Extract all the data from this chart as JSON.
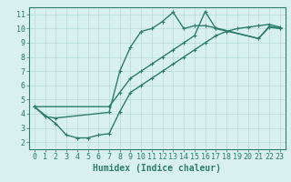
{
  "line1_x": [
    0,
    1,
    2,
    7,
    8,
    9,
    10,
    11,
    12,
    13,
    14,
    15,
    16,
    17,
    21,
    22,
    23
  ],
  "line1_y": [
    4.5,
    3.8,
    3.7,
    4.1,
    7.0,
    8.7,
    9.8,
    10.0,
    10.5,
    11.15,
    10.0,
    10.2,
    10.2,
    10.05,
    9.3,
    10.15,
    10.05
  ],
  "line2_x": [
    0,
    2,
    3,
    4,
    5,
    6,
    7,
    8,
    9,
    10,
    11,
    12,
    13,
    14,
    15,
    16,
    17,
    18,
    19,
    20,
    21,
    22,
    23
  ],
  "line2_y": [
    4.5,
    3.3,
    2.5,
    2.3,
    2.3,
    2.5,
    2.6,
    4.15,
    5.5,
    6.0,
    6.5,
    7.0,
    7.5,
    8.0,
    8.5,
    9.0,
    9.5,
    9.8,
    10.0,
    10.1,
    10.2,
    10.3,
    10.1
  ],
  "line3_x": [
    0,
    7,
    8,
    9,
    10,
    11,
    12,
    13,
    14,
    15,
    16,
    17,
    21,
    22,
    23
  ],
  "line3_y": [
    4.5,
    4.5,
    5.5,
    6.5,
    7.0,
    7.5,
    8.0,
    8.5,
    9.0,
    9.5,
    11.2,
    10.0,
    9.3,
    10.1,
    10.0
  ],
  "color": "#2e7d6e",
  "bg_color": "#d8f0f0",
  "grid_color": "#b8dada",
  "xlabel": "Humidex (Indice chaleur)",
  "xlim": [
    -0.5,
    23.5
  ],
  "ylim": [
    1.5,
    11.5
  ],
  "xticks": [
    0,
    1,
    2,
    3,
    4,
    5,
    6,
    7,
    8,
    9,
    10,
    11,
    12,
    13,
    14,
    15,
    16,
    17,
    18,
    19,
    20,
    21,
    22,
    23
  ],
  "yticks": [
    2,
    3,
    4,
    5,
    6,
    7,
    8,
    9,
    10,
    11
  ],
  "fontsize": 6.0,
  "linewidth": 1.0,
  "markersize": 3.0
}
